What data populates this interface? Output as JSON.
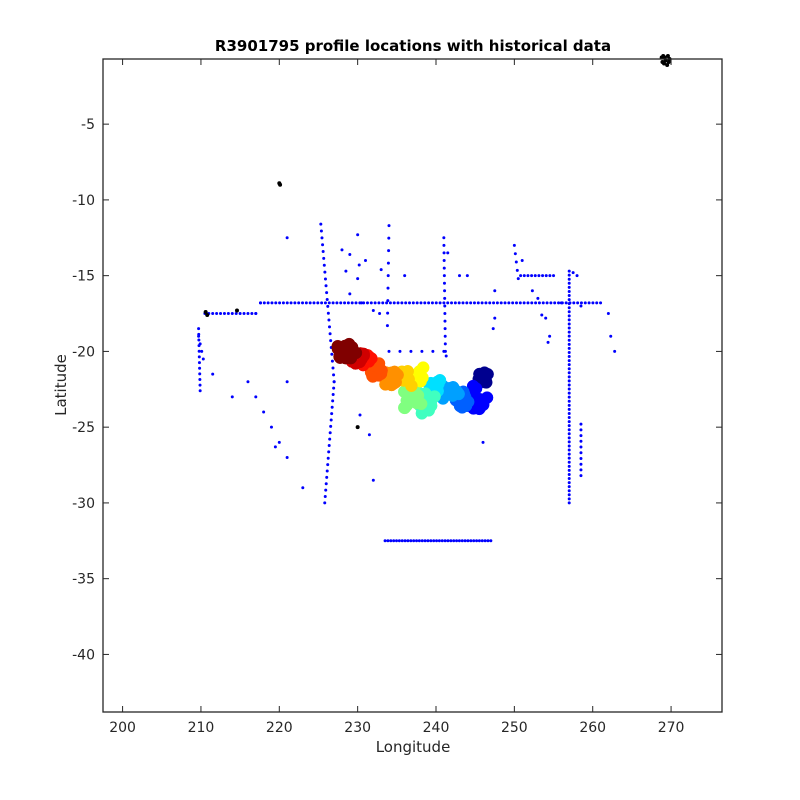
{
  "chart_data": {
    "type": "scatter",
    "title": "R3901795 profile locations with historical data",
    "xlabel": "Longitude",
    "ylabel": "Latitude",
    "xlim": [
      197.5,
      276.5
    ],
    "ylim": [
      -43.8,
      -0.7
    ],
    "xticks": [
      200,
      210,
      220,
      230,
      240,
      250,
      260,
      270
    ],
    "xtick_labels": [
      "200",
      "210",
      "220",
      "230",
      "240",
      "250",
      "260",
      "270"
    ],
    "yticks": [
      -5,
      -10,
      -15,
      -20,
      -25,
      -30,
      -35,
      -40
    ],
    "ytick_labels": [
      "-5",
      "-10",
      "-15",
      "-20",
      "-25",
      "-30",
      "-35",
      "-40"
    ],
    "grid": false,
    "legend": "none",
    "colors": {
      "historical": "#0000ff",
      "other": "#000000",
      "axes": "#262626",
      "trajectory_colormap": [
        "#00008f",
        "#0000ff",
        "#00a0ff",
        "#00ffff",
        "#60ffa0",
        "#ffff00",
        "#ff8000",
        "#ff0000",
        "#800000"
      ]
    },
    "series": [
      {
        "role": "historical",
        "segments": [
          {
            "from": [
              210.5,
              -17.5
            ],
            "to": [
              217.0,
              -17.5
            ],
            "count": 14
          },
          {
            "from": [
              217.0,
              -17.5
            ],
            "to": [
              217.6,
              -16.8
            ],
            "count": 2
          },
          {
            "from": [
              217.6,
              -16.8
            ],
            "to": [
              261.0,
              -16.8
            ],
            "count": 90
          },
          {
            "from": [
              225.3,
              -11.6
            ],
            "to": [
              227.0,
              -22.0
            ],
            "count": 24
          },
          {
            "from": [
              227.0,
              -22.0
            ],
            "to": [
              225.8,
              -30.0
            ],
            "count": 20
          },
          {
            "from": [
              209.7,
              -18.5
            ],
            "to": [
              209.9,
              -22.6
            ],
            "count": 12
          },
          {
            "from": [
              257.0,
              -14.7
            ],
            "to": [
              257.0,
              -30.0
            ],
            "count": 58
          },
          {
            "from": [
              258.5,
              -24.8
            ],
            "to": [
              258.5,
              -28.2
            ],
            "count": 10
          },
          {
            "from": [
              233.5,
              -32.5
            ],
            "to": [
              247.0,
              -32.5
            ],
            "count": 38
          },
          {
            "from": [
              241.0,
              -12.5
            ],
            "to": [
              241.2,
              -20.0
            ],
            "count": 16
          },
          {
            "from": [
              234.0,
              -11.7
            ],
            "to": [
              233.8,
              -18.3
            ],
            "count": 9
          },
          {
            "from": [
              250.0,
              -13.0
            ],
            "to": [
              250.5,
              -15.2
            ],
            "count": 5
          },
          {
            "from": [
              250.8,
              -15.0
            ],
            "to": [
              255.0,
              -15.0
            ],
            "count": 10
          },
          {
            "from": [
              209.7,
              -19.0
            ],
            "to": [
              210.3,
              -20.5
            ],
            "count": 4
          },
          {
            "from": [
              234.0,
              -20.0
            ],
            "to": [
              241.0,
              -20.0
            ],
            "count": 6
          },
          {
            "from": [
              243.0,
              -15.0
            ],
            "to": [
              244.0,
              -15.0
            ],
            "count": 2
          }
        ],
        "points": [
          [
            221.0,
            -12.5
          ],
          [
            228.0,
            -13.3
          ],
          [
            230.0,
            -12.3
          ],
          [
            229.0,
            -13.6
          ],
          [
            230.2,
            -14.3
          ],
          [
            233.0,
            -14.6
          ],
          [
            228.5,
            -14.7
          ],
          [
            231.0,
            -20.5
          ],
          [
            230.0,
            -15.2
          ],
          [
            232.0,
            -17.3
          ],
          [
            232.8,
            -17.5
          ],
          [
            229.0,
            -16.2
          ],
          [
            230.3,
            -24.2
          ],
          [
            231.5,
            -25.5
          ],
          [
            232.0,
            -28.5
          ],
          [
            223.0,
            -29.0
          ],
          [
            220.0,
            -26.0
          ],
          [
            221.0,
            -27.0
          ],
          [
            219.0,
            -25.0
          ],
          [
            218.0,
            -24.0
          ],
          [
            217.0,
            -23.0
          ],
          [
            216.0,
            -22.0
          ],
          [
            214.0,
            -23.0
          ],
          [
            211.5,
            -21.5
          ],
          [
            221.0,
            -22.0
          ],
          [
            219.5,
            -26.3
          ],
          [
            262.0,
            -17.5
          ],
          [
            262.3,
            -19.0
          ],
          [
            262.8,
            -20.0
          ],
          [
            254.0,
            -17.8
          ],
          [
            254.5,
            -19.0
          ],
          [
            254.3,
            -19.4
          ],
          [
            253.0,
            -16.5
          ],
          [
            252.3,
            -16.0
          ],
          [
            253.5,
            -17.6
          ],
          [
            251.0,
            -14.0
          ],
          [
            257.5,
            -14.8
          ],
          [
            258.0,
            -15.0
          ],
          [
            258.5,
            -17.0
          ],
          [
            256.0,
            -16.8
          ],
          [
            246.0,
            -26.0
          ],
          [
            247.5,
            -16.0
          ],
          [
            247.3,
            -18.5
          ],
          [
            247.5,
            -17.8
          ],
          [
            230.5,
            -16.8
          ],
          [
            236.0,
            -15.0
          ],
          [
            231.0,
            -14.0
          ],
          [
            241.5,
            -13.5
          ],
          [
            241.3,
            -20.3
          ]
        ]
      },
      {
        "role": "other",
        "points": [
          [
            269.0,
            -0.5
          ],
          [
            269.3,
            -0.8
          ],
          [
            269.6,
            -0.5
          ],
          [
            269.1,
            -1.0
          ],
          [
            269.5,
            -1.1
          ],
          [
            269.8,
            -0.7
          ],
          [
            268.9,
            -0.9
          ],
          [
            269.2,
            -0.6
          ],
          [
            269.7,
            -0.9
          ],
          [
            268.8,
            -0.6
          ],
          [
            220.0,
            -8.9
          ],
          [
            220.1,
            -9.0
          ],
          [
            210.6,
            -17.4
          ],
          [
            210.8,
            -17.6
          ],
          [
            214.6,
            -17.3
          ],
          [
            230.0,
            -25.0
          ]
        ]
      },
      {
        "role": "trajectory",
        "clusters": [
          {
            "center": [
              246.0,
              -21.8
            ],
            "spread": [
              0.7,
              0.4
            ],
            "count": 14,
            "color": "#00008f"
          },
          {
            "center": [
              245.0,
              -23.0
            ],
            "spread": [
              1.6,
              0.8
            ],
            "count": 18,
            "color": "#0000ff"
          },
          {
            "center": [
              243.5,
              -23.3
            ],
            "spread": [
              1.0,
              0.7
            ],
            "count": 10,
            "color": "#0060ff"
          },
          {
            "center": [
              241.8,
              -22.8
            ],
            "spread": [
              1.1,
              0.6
            ],
            "count": 12,
            "color": "#00a0ff"
          },
          {
            "center": [
              239.8,
              -22.6
            ],
            "spread": [
              1.2,
              0.7
            ],
            "count": 12,
            "color": "#00e0ff"
          },
          {
            "center": [
              238.6,
              -23.3
            ],
            "spread": [
              1.3,
              0.8
            ],
            "count": 14,
            "color": "#40ffc0"
          },
          {
            "center": [
              237.0,
              -23.2
            ],
            "spread": [
              1.3,
              0.7
            ],
            "count": 14,
            "color": "#80ff80"
          },
          {
            "center": [
              237.5,
              -21.5
            ],
            "spread": [
              1.0,
              0.5
            ],
            "count": 12,
            "color": "#ffff00"
          },
          {
            "center": [
              236.0,
              -21.8
            ],
            "spread": [
              0.9,
              0.5
            ],
            "count": 10,
            "color": "#ffd000"
          },
          {
            "center": [
              234.2,
              -21.8
            ],
            "spread": [
              1.1,
              0.5
            ],
            "count": 14,
            "color": "#ff9000"
          },
          {
            "center": [
              232.5,
              -21.2
            ],
            "spread": [
              0.9,
              0.5
            ],
            "count": 12,
            "color": "#ff5000"
          },
          {
            "center": [
              231.0,
              -20.6
            ],
            "spread": [
              0.8,
              0.4
            ],
            "count": 12,
            "color": "#ff1000"
          },
          {
            "center": [
              230.0,
              -20.4
            ],
            "spread": [
              0.8,
              0.4
            ],
            "count": 12,
            "color": "#d00000"
          },
          {
            "center": [
              228.6,
              -20.0
            ],
            "spread": [
              1.2,
              0.5
            ],
            "count": 16,
            "color": "#800000"
          }
        ]
      }
    ]
  }
}
